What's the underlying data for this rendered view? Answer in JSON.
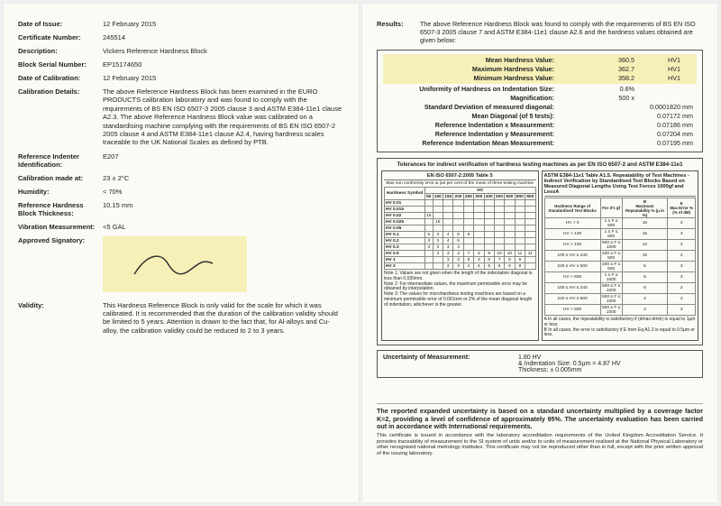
{
  "left": {
    "dateIssueLbl": "Date of Issue:",
    "dateIssue": "12 February 2015",
    "certNumLbl": "Certificate Number:",
    "certNum": "245514",
    "descLbl": "Description:",
    "desc": "Vickers Reference Hardness Block",
    "serialLbl": "Block Serial Number:",
    "serial": "EP15174650",
    "dateCalLbl": "Date of Calibration:",
    "dateCal": "12 February 2015",
    "calibDetLbl": "Calibration Details:",
    "calibDet": "The above Reference Hardness Block has been examined in the EURO PRODUCTS calibration laboratory and was found to comply with the requirements of BS EN ISO 6507-3 2005 clause 3 and ASTM E384-11e1 clause A2.3. The above Reference Hardness Block value was calibrated on a standardising machine complying with the requirements of BS EN ISO 6507-2 2005 clause 4 and ASTM E384-11e1 clause A2.4, having hardness scales traceable to the UK National Scales as defined by PTB.",
    "refIndLbl": "Reference Indenter Identification:",
    "refInd": "E207",
    "calibAtLbl": "Calibration made at:",
    "calibAt": "23 ± 2°C",
    "humidityLbl": "Humidity:",
    "humidity": "< 70%",
    "thickLbl": "Reference Hardness Block Thickness:",
    "thick": "10.15 mm",
    "vibLbl": "Vibration Measurement:",
    "vib": "<5 GAL",
    "appSigLbl": "Approved Signatory:",
    "validityLbl": "Validity:",
    "validity": "This Hardness Reference Block is only valid for the scale for which it was calibrated. It is recommended that the duration of the calibration validity should be limited to 5 years. Attention is drawn to the fact that, for Al-alloys and Cu-alloy, the calibration validity could be reduced to 2 to 3 years."
  },
  "right": {
    "resultsLbl": "Results:",
    "resultsTxt": "The above Reference Hardness Block was found to comply with the requirements of BS EN ISO 6507-3 2005 clause 7 and ASTM E384-11e1 clause A2.6 and the hardness values obtained are given below:",
    "mean": {
      "label": "Mean Hardness Value:",
      "v": "360.5",
      "u": "HV1"
    },
    "max": {
      "label": "Maximum Hardness Value:",
      "v": "362.7",
      "u": "HV1"
    },
    "min": {
      "label": "Minimum Hardness Value:",
      "v": "358.2",
      "u": "HV1"
    },
    "uniform": {
      "label": "Uniformity of Hardness on Indentation Size:",
      "v": "0.6%"
    },
    "mag": {
      "label": "Magnification:",
      "v": "500 x"
    },
    "sd": {
      "label": "Standard Deviation of measured diagonal:",
      "v": "0.0001820 mm"
    },
    "meanDiag": {
      "label": "Mean Diagonal (of 5 tests):",
      "v": "0.07172 mm"
    },
    "refX": {
      "label": "Reference Indentation x Measurement:",
      "v": "0.07186 mm"
    },
    "refY": {
      "label": "Reference Indentation y Measurement:",
      "v": "0.07204 mm"
    },
    "refMean": {
      "label": "Reference Indentation Mean Measurement:",
      "v": "0.07195 mm"
    },
    "tolTitle": "Tolerances for indirect verification of hardness testing machines as per EN ISO 6507-2 and ASTM E384-11e1",
    "isoTitle": "EN ISO 6507-2:2005 Table 5",
    "isoCaption": "Max non conformity error & (as per cent of the mean of three testing machine",
    "isoHardnessHdr": "Hardness Symbol",
    "isoRows": [
      {
        "sym": "HV 0.01",
        "v": [
          "",
          "",
          "",
          "",
          "",
          "",
          "",
          "",
          "",
          "",
          ""
        ]
      },
      {
        "sym": "HV 0.015",
        "v": [
          "",
          "",
          "",
          "",
          "",
          "",
          "",
          "",
          "",
          "",
          ""
        ]
      },
      {
        "sym": "HV 0.02",
        "v": [
          "15",
          "",
          "",
          "",
          "",
          "",
          "",
          "",
          "",
          "",
          ""
        ]
      },
      {
        "sym": "HV 0.025",
        "v": [
          "",
          "16",
          "",
          "",
          "",
          "",
          "",
          "",
          "",
          "",
          ""
        ]
      },
      {
        "sym": "HV 0.05",
        "v": [
          "",
          "",
          "",
          "",
          "",
          "",
          "",
          "",
          "",
          "",
          ""
        ]
      },
      {
        "sym": "HV 0.1",
        "v": [
          "5",
          "3",
          "4",
          "6",
          "8",
          "",
          "",
          "",
          "",
          "",
          ""
        ]
      },
      {
        "sym": "HV 0.2",
        "v": [
          "3",
          "3",
          "4",
          "5",
          "",
          "",
          "",
          "",
          "",
          "",
          ""
        ]
      },
      {
        "sym": "HV 0.3",
        "v": [
          "3",
          "3",
          "3",
          "4",
          "",
          "",
          "",
          "",
          "",
          "",
          ""
        ]
      },
      {
        "sym": "HV 0.5",
        "v": [
          "",
          "3",
          "3",
          "4",
          "7",
          "4",
          "8",
          "10",
          "10",
          "11",
          "11"
        ]
      },
      {
        "sym": "HV 1",
        "v": [
          "",
          "",
          "3",
          "3",
          "5",
          "3",
          "6",
          "7",
          "8",
          "9",
          ""
        ]
      },
      {
        "sym": "HV 2",
        "v": [
          "",
          "",
          "3",
          "3",
          "4",
          "4",
          "5",
          "6",
          "6",
          "8",
          ""
        ]
      }
    ],
    "isoCols": [
      "50",
      "100",
      "150",
      "200",
      "250",
      "300",
      "400",
      "500",
      "600",
      "800",
      "900"
    ],
    "tolNotes": "Note 1: Values are not given when the length of the indentation diagonal is less than 0.020mm.\nNote 2: For intermediate values, the maximum permissible error may be obtained by interpolation.\nNote 3: The values for microhardness testing machines are based on a minimum permissible error of 0.001mm or 2% of the mean diagonal length of indentation, whichever is the greater.",
    "astmTitle": "ASTM E384-11e1 Table A1.5. Repeatability of Test Machines - Indirect Verification by Standardised Test Blocks Based on Measured Diagonal Lengths Using Test Forces 1000gf and LessA",
    "astmHdr": [
      "Hardness Range of Standardised Test Blocks",
      "For d's gf",
      "B\nMaximum Repeatability % (μ in %)",
      "E\nMax Error % (% of dM)"
    ],
    "astmRows": [
      [
        "HV > 0",
        "1 ≤ F ≤ 500",
        "15",
        "3"
      ],
      [
        "HV > 100",
        "1 ≤ F ≤ 500",
        "15",
        "3"
      ],
      [
        "HV > 100",
        "500 ≤ F ≤ 1000",
        "12",
        "2"
      ],
      [
        "100 ≤ HV ≤ 240",
        "100 ≤ F ≤ 500",
        "15",
        "2"
      ],
      [
        "240 ≤ HV ≤ 600",
        "100 ≤ F ≤ 500",
        "5",
        "3"
      ],
      [
        "HV > 600",
        "1 ≤ F ≤ 1000",
        "6",
        "3"
      ],
      [
        "100 ≤ HV ≤ 240",
        "500 ≤ F ≤ 1000",
        "8",
        "2"
      ],
      [
        "240 ≤ HV ≤ 600",
        "500 ≤ F ≤ 1000",
        "4",
        "3"
      ],
      [
        "HV > 600",
        "500 ≤ F ≤ 1000",
        "3",
        "3"
      ]
    ],
    "astmFoot": "A In all cases, the repeatability is satisfactory if (dmax-dmin) is equal to 1µm or less.\nB In all cases, the error is satisfactory if E from Eq A1.2 is equal to 0.5µm or less.",
    "uncertLbl": "Uncertainty of Measurement:",
    "uncertHV": "1.80 HV",
    "uncertInd": "& Indentation Size: 0.5µm = 4.87 HV",
    "uncertThk": "Thickness: ± 0.005mm",
    "footBold": "The reported expanded uncertainty is based on a standard uncertainty multiplied by a coverage factor K=2, providing a level of confidence of approximately 95%. The uncertainty evaluation has been carried out in accordance with International requirements.",
    "footSmall": "This certificate is issued in accordance with the laboratory accreditation requirements of the United Kingdom Accreditation Service. It provides traceability of measurement to the SI system of units and/or to units of measurement realised at the National Physical Laboratory or other recognised national metrology institutes. This certificate may not be reproduced other than in full, except with the prior written approval of the issuing laboratory."
  },
  "style": {
    "hl": "#f6f0b8",
    "page": "#fbfbf5",
    "border": "#555"
  }
}
